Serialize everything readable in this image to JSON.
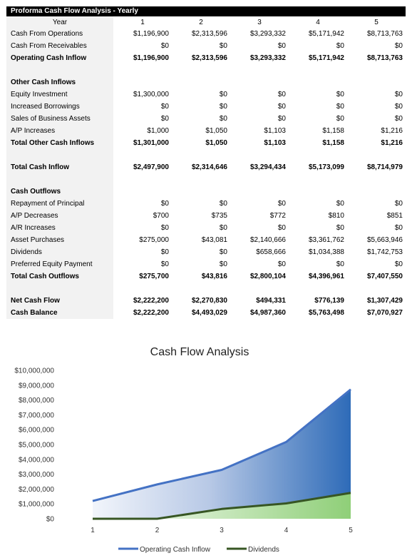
{
  "table": {
    "title": "Proforma Cash Flow Analysis - Yearly",
    "header_label": "Year",
    "years": [
      "1",
      "2",
      "3",
      "4",
      "5"
    ],
    "rows": [
      {
        "label": "Cash From Operations",
        "values": [
          "$1,196,900",
          "$2,313,596",
          "$3,293,332",
          "$5,171,942",
          "$8,713,763"
        ],
        "bold": false
      },
      {
        "label": "Cash From Receivables",
        "values": [
          "$0",
          "$0",
          "$0",
          "$0",
          "$0"
        ],
        "bold": false
      },
      {
        "label": "Operating Cash Inflow",
        "values": [
          "$1,196,900",
          "$2,313,596",
          "$3,293,332",
          "$5,171,942",
          "$8,713,763"
        ],
        "bold": true
      },
      {
        "label": "",
        "values": [
          "",
          "",
          "",
          "",
          ""
        ],
        "bold": false,
        "gap": true
      },
      {
        "label": "Other Cash Inflows",
        "values": [
          "",
          "",
          "",
          "",
          ""
        ],
        "bold": true
      },
      {
        "label": "Equity Investment",
        "values": [
          "$1,300,000",
          "$0",
          "$0",
          "$0",
          "$0"
        ],
        "bold": false
      },
      {
        "label": "Increased Borrowings",
        "values": [
          "$0",
          "$0",
          "$0",
          "$0",
          "$0"
        ],
        "bold": false
      },
      {
        "label": "Sales of Business Assets",
        "values": [
          "$0",
          "$0",
          "$0",
          "$0",
          "$0"
        ],
        "bold": false
      },
      {
        "label": "A/P Increases",
        "values": [
          "$1,000",
          "$1,050",
          "$1,103",
          "$1,158",
          "$1,216"
        ],
        "bold": false
      },
      {
        "label": "Total Other Cash Inflows",
        "values": [
          "$1,301,000",
          "$1,050",
          "$1,103",
          "$1,158",
          "$1,216"
        ],
        "bold": true
      },
      {
        "label": "",
        "values": [
          "",
          "",
          "",
          "",
          ""
        ],
        "bold": false,
        "gap": true
      },
      {
        "label": "Total Cash Inflow",
        "values": [
          "$2,497,900",
          "$2,314,646",
          "$3,294,434",
          "$5,173,099",
          "$8,714,979"
        ],
        "bold": true
      },
      {
        "label": "",
        "values": [
          "",
          "",
          "",
          "",
          ""
        ],
        "bold": false,
        "gap": true
      },
      {
        "label": "Cash Outflows",
        "values": [
          "",
          "",
          "",
          "",
          ""
        ],
        "bold": true
      },
      {
        "label": "Repayment of Principal",
        "values": [
          "$0",
          "$0",
          "$0",
          "$0",
          "$0"
        ],
        "bold": false
      },
      {
        "label": "A/P Decreases",
        "values": [
          "$700",
          "$735",
          "$772",
          "$810",
          "$851"
        ],
        "bold": false
      },
      {
        "label": "A/R Increases",
        "values": [
          "$0",
          "$0",
          "$0",
          "$0",
          "$0"
        ],
        "bold": false
      },
      {
        "label": "Asset Purchases",
        "values": [
          "$275,000",
          "$43,081",
          "$2,140,666",
          "$3,361,762",
          "$5,663,946"
        ],
        "bold": false
      },
      {
        "label": "Dividends",
        "values": [
          "$0",
          "$0",
          "$658,666",
          "$1,034,388",
          "$1,742,753"
        ],
        "bold": false
      },
      {
        "label": "Preferred Equity Payment",
        "values": [
          "$0",
          "$0",
          "$0",
          "$0",
          "$0"
        ],
        "bold": false
      },
      {
        "label": "Total Cash Outflows",
        "values": [
          "$275,700",
          "$43,816",
          "$2,800,104",
          "$4,396,961",
          "$7,407,550"
        ],
        "bold": true
      },
      {
        "label": "",
        "values": [
          "",
          "",
          "",
          "",
          ""
        ],
        "bold": false,
        "gap": true
      },
      {
        "label": "Net Cash Flow",
        "values": [
          "$2,222,200",
          "$2,270,830",
          "$494,331",
          "$776,139",
          "$1,307,429"
        ],
        "bold": true
      },
      {
        "label": "Cash Balance",
        "values": [
          "$2,222,200",
          "$4,493,029",
          "$4,987,360",
          "$5,763,498",
          "$7,070,927"
        ],
        "bold": true
      }
    ]
  },
  "chart_data": {
    "type": "area",
    "title": "Cash Flow Analysis",
    "categories": [
      "1",
      "2",
      "3",
      "4",
      "5"
    ],
    "ylim": [
      0,
      10000000
    ],
    "y_ticks": [
      0,
      1000000,
      2000000,
      3000000,
      4000000,
      5000000,
      6000000,
      7000000,
      8000000,
      9000000,
      10000000
    ],
    "y_tick_labels": [
      "$0",
      "$1,000,000",
      "$2,000,000",
      "$3,000,000",
      "$4,000,000",
      "$5,000,000",
      "$6,000,000",
      "$7,000,000",
      "$8,000,000",
      "$9,000,000",
      "$10,000,000"
    ],
    "grid": false,
    "legend": "bottom",
    "series": [
      {
        "name": "Operating Cash Inflow",
        "values": [
          1196900,
          2313596,
          3293332,
          5171942,
          8713763
        ],
        "color": "#4472c4",
        "fill": "blue-gradient"
      },
      {
        "name": "Dividends",
        "values": [
          0,
          0,
          658666,
          1034388,
          1742753
        ],
        "color": "#375623",
        "fill": "green-gradient"
      }
    ]
  }
}
